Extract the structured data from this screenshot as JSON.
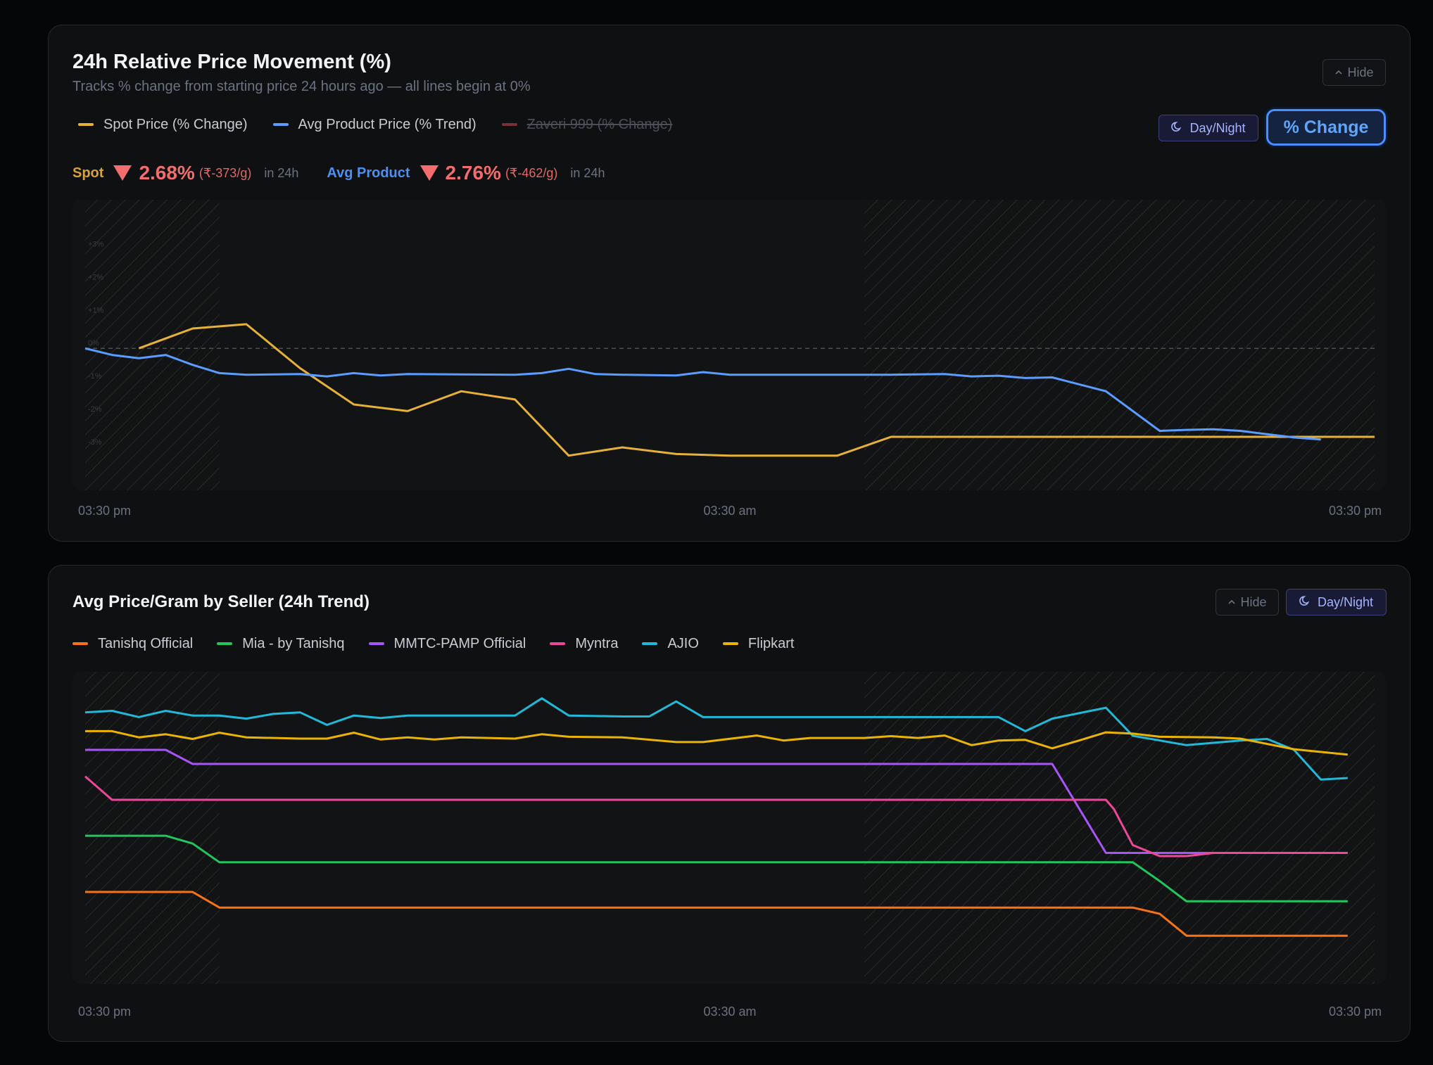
{
  "card1": {
    "title": "24h Relative Price Movement (%)",
    "subtitle": "Tracks % change from starting price 24 hours ago — all lines begin at 0%",
    "hide_label": "Hide",
    "daynight_label": "Day/Night",
    "change_label": "% Change",
    "legend": [
      {
        "label": "Spot Price (% Change)",
        "color": "#e6b13a",
        "active": true
      },
      {
        "label": "Avg Product Price (% Trend)",
        "color": "#5b9cff",
        "active": true
      },
      {
        "label": "Zaveri 999 (% Change)",
        "color": "#7a2f3a",
        "active": false
      }
    ],
    "stats": {
      "spot_label": "Spot",
      "spot_pct": "2.68%",
      "spot_abs": "(₹-373/g)",
      "spot_in": "in 24h",
      "avg_label": "Avg Product",
      "avg_pct": "2.76%",
      "avg_abs": "(₹-462/g)",
      "avg_in": "in 24h"
    }
  },
  "card2": {
    "title": "Avg Price/Gram by Seller (24h Trend)",
    "hide_label": "Hide",
    "daynight_label": "Day/Night",
    "legend": [
      {
        "label": "Tanishq Official",
        "color": "#f97316"
      },
      {
        "label": "Mia - by Tanishq",
        "color": "#22c55e"
      },
      {
        "label": "MMTC-PAMP Official",
        "color": "#a855f7"
      },
      {
        "label": "Myntra",
        "color": "#ec4899"
      },
      {
        "label": "AJIO",
        "color": "#22b8d8"
      },
      {
        "label": "Flipkart",
        "color": "#eab308"
      }
    ]
  },
  "chart_data": [
    {
      "type": "line",
      "title": "24h Relative Price Movement (%)",
      "x_tick_labels": [
        "03:30 pm",
        "03:30 am",
        "03:30 pm"
      ],
      "y_tick_labels": [
        "+3%",
        "+2%",
        "+1%",
        "0%",
        "-1%",
        "-2%",
        "-3%"
      ],
      "ylim": [
        -4.3,
        4.5
      ],
      "x_count": 49,
      "zero_line": true,
      "night_bands": [
        [
          0,
          5
        ],
        [
          29,
          48
        ]
      ],
      "series": [
        {
          "name": "Spot Price (% Change)",
          "color": "#e6b13a",
          "points": [
            [
              2,
              0.0
            ],
            [
              4,
              0.6
            ],
            [
              6,
              0.73
            ],
            [
              8,
              -0.6
            ],
            [
              10,
              -1.7
            ],
            [
              12,
              -1.9
            ],
            [
              14,
              -1.3
            ],
            [
              16,
              -1.55
            ],
            [
              18,
              -3.25
            ],
            [
              20,
              -3.0
            ],
            [
              22,
              -3.2
            ],
            [
              24,
              -3.25
            ],
            [
              26,
              -3.25
            ],
            [
              28,
              -3.25
            ],
            [
              30,
              -2.68
            ],
            [
              48,
              -2.68
            ]
          ]
        },
        {
          "name": "Avg Product Price (% Trend)",
          "color": "#5b9cff",
          "points": [
            [
              0,
              0.0
            ],
            [
              1,
              -0.2
            ],
            [
              2,
              -0.3
            ],
            [
              3,
              -0.2
            ],
            [
              4,
              -0.5
            ],
            [
              5,
              -0.75
            ],
            [
              6,
              -0.8
            ],
            [
              8,
              -0.78
            ],
            [
              9,
              -0.85
            ],
            [
              10,
              -0.75
            ],
            [
              11,
              -0.82
            ],
            [
              12,
              -0.78
            ],
            [
              16,
              -0.8
            ],
            [
              17,
              -0.75
            ],
            [
              18,
              -0.62
            ],
            [
              19,
              -0.78
            ],
            [
              20,
              -0.8
            ],
            [
              22,
              -0.82
            ],
            [
              23,
              -0.72
            ],
            [
              24,
              -0.8
            ],
            [
              28,
              -0.8
            ],
            [
              30,
              -0.8
            ],
            [
              32,
              -0.78
            ],
            [
              33,
              -0.85
            ],
            [
              34,
              -0.83
            ],
            [
              35,
              -0.9
            ],
            [
              36,
              -0.88
            ],
            [
              38,
              -1.3
            ],
            [
              40,
              -2.5
            ],
            [
              41,
              -2.47
            ],
            [
              42,
              -2.45
            ],
            [
              43,
              -2.5
            ],
            [
              44,
              -2.6
            ],
            [
              45,
              -2.7
            ],
            [
              46,
              -2.76
            ]
          ]
        }
      ]
    },
    {
      "type": "line",
      "title": "Avg Price/Gram by Seller (24h Trend)",
      "x_tick_labels": [
        "03:30 pm",
        "03:30 am",
        "03:30 pm"
      ],
      "ylim": [
        0,
        100
      ],
      "x_count": 49,
      "night_bands": [
        [
          0,
          5
        ],
        [
          29,
          48
        ]
      ],
      "series": [
        {
          "name": "AJIO",
          "color": "#22b8d8",
          "points": [
            [
              0,
              87
            ],
            [
              1,
              87.5
            ],
            [
              2,
              85.5
            ],
            [
              3,
              87.5
            ],
            [
              4,
              86
            ],
            [
              5,
              86
            ],
            [
              6,
              85
            ],
            [
              7,
              86.5
            ],
            [
              8,
              87
            ],
            [
              9,
              83
            ],
            [
              10,
              86
            ],
            [
              11,
              85.2
            ],
            [
              12,
              86
            ],
            [
              16,
              86
            ],
            [
              17,
              91.5
            ],
            [
              18,
              86
            ],
            [
              20,
              85.7
            ],
            [
              21,
              85.7
            ],
            [
              22,
              90.5
            ],
            [
              23,
              85.5
            ],
            [
              34,
              85.5
            ],
            [
              35,
              81
            ],
            [
              36,
              85
            ],
            [
              38,
              88.5
            ],
            [
              39,
              79.5
            ],
            [
              41,
              76.5
            ],
            [
              43,
              78
            ],
            [
              44,
              78.5
            ],
            [
              45,
              75
            ],
            [
              46,
              65.5
            ],
            [
              47,
              66
            ]
          ]
        },
        {
          "name": "Flipkart",
          "color": "#eab308",
          "points": [
            [
              0,
              81
            ],
            [
              1,
              81
            ],
            [
              2,
              79
            ],
            [
              3,
              80
            ],
            [
              4,
              78.5
            ],
            [
              5,
              80.5
            ],
            [
              6,
              79
            ],
            [
              8,
              78.6
            ],
            [
              9,
              78.6
            ],
            [
              10,
              80.5
            ],
            [
              11,
              78.3
            ],
            [
              12,
              79
            ],
            [
              13,
              78.3
            ],
            [
              14,
              79
            ],
            [
              16,
              78.6
            ],
            [
              17,
              80
            ],
            [
              18,
              79.2
            ],
            [
              20,
              79
            ],
            [
              22,
              77.5
            ],
            [
              23,
              77.5
            ],
            [
              25,
              79.6
            ],
            [
              26,
              78
            ],
            [
              27,
              78.8
            ],
            [
              29,
              78.8
            ],
            [
              30,
              79.4
            ],
            [
              31,
              78.8
            ],
            [
              32,
              79.6
            ],
            [
              33,
              76.5
            ],
            [
              34,
              78
            ],
            [
              35,
              78.2
            ],
            [
              36,
              75.5
            ],
            [
              37,
              78
            ],
            [
              38,
              80.6
            ],
            [
              39,
              80.2
            ],
            [
              40,
              79.2
            ],
            [
              42,
              79
            ],
            [
              43,
              78.6
            ],
            [
              45,
              75.2
            ],
            [
              47,
              73.5
            ]
          ]
        },
        {
          "name": "MMTC-PAMP Official",
          "color": "#a855f7",
          "points": [
            [
              0,
              75
            ],
            [
              2,
              75
            ],
            [
              3,
              75
            ],
            [
              4,
              70.5
            ],
            [
              10,
              70.5
            ],
            [
              36,
              70.5
            ],
            [
              38,
              42
            ],
            [
              40,
              42
            ],
            [
              47,
              42
            ]
          ]
        },
        {
          "name": "Myntra",
          "color": "#ec4899",
          "points": [
            [
              0,
              66.5
            ],
            [
              1,
              59
            ],
            [
              38,
              59
            ],
            [
              38.3,
              56
            ],
            [
              39,
              44.5
            ],
            [
              40,
              41
            ],
            [
              41,
              41
            ],
            [
              42,
              42
            ],
            [
              47,
              42
            ]
          ]
        },
        {
          "name": "Mia - by Tanishq",
          "color": "#22c55e",
          "points": [
            [
              0,
              47.5
            ],
            [
              3,
              47.5
            ],
            [
              4,
              45
            ],
            [
              5,
              39
            ],
            [
              36,
              39
            ],
            [
              39,
              39
            ],
            [
              40,
              33
            ],
            [
              41,
              26.5
            ],
            [
              47,
              26.5
            ]
          ]
        },
        {
          "name": "Tanishq Official",
          "color": "#f97316",
          "points": [
            [
              0,
              29.5
            ],
            [
              4,
              29.5
            ],
            [
              5,
              24.5
            ],
            [
              39,
              24.5
            ],
            [
              40,
              22.5
            ],
            [
              41,
              15.5
            ],
            [
              47,
              15.5
            ]
          ]
        }
      ]
    }
  ]
}
